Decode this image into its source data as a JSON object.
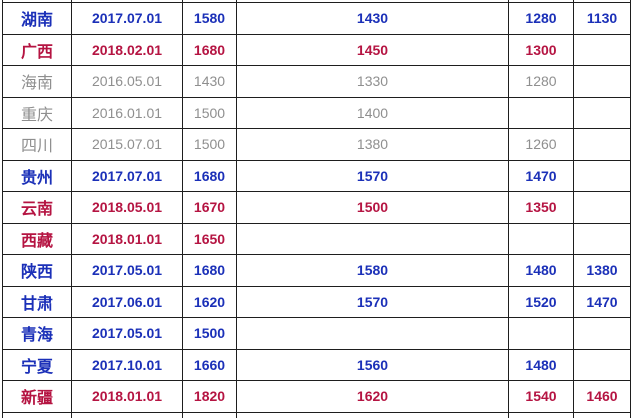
{
  "page": {
    "background": "#ffffff"
  },
  "table": {
    "colors": {
      "blue": "#1b30b8",
      "red": "#b51442",
      "gray": "#8f8f8f",
      "border": "#1e1e1e"
    },
    "rows": [
      {
        "style": "blue",
        "cells": [
          "湖南",
          "2017.07.01",
          "1580",
          "1430",
          "1280",
          "1130"
        ]
      },
      {
        "style": "red",
        "cells": [
          "广西",
          "2018.02.01",
          "1680",
          "1450",
          "1300",
          ""
        ]
      },
      {
        "style": "gray",
        "cells": [
          "海南",
          "2016.05.01",
          "1430",
          "1330",
          "1280",
          ""
        ]
      },
      {
        "style": "gray",
        "cells": [
          "重庆",
          "2016.01.01",
          "1500",
          "1400",
          "",
          ""
        ]
      },
      {
        "style": "gray",
        "cells": [
          "四川",
          "2015.07.01",
          "1500",
          "1380",
          "1260",
          ""
        ]
      },
      {
        "style": "blue",
        "cells": [
          "贵州",
          "2017.07.01",
          "1680",
          "1570",
          "1470",
          ""
        ]
      },
      {
        "style": "red",
        "cells": [
          "云南",
          "2018.05.01",
          "1670",
          "1500",
          "1350",
          ""
        ]
      },
      {
        "style": "red",
        "cells": [
          "西藏",
          "2018.01.01",
          "1650",
          "",
          "",
          ""
        ]
      },
      {
        "style": "blue",
        "cells": [
          "陕西",
          "2017.05.01",
          "1680",
          "1580",
          "1480",
          "1380"
        ]
      },
      {
        "style": "blue",
        "cells": [
          "甘肃",
          "2017.06.01",
          "1620",
          "1570",
          "1520",
          "1470"
        ]
      },
      {
        "style": "blue",
        "cells": [
          "青海",
          "2017.05.01",
          "1500",
          "",
          "",
          ""
        ]
      },
      {
        "style": "blue",
        "cells": [
          "宁夏",
          "2017.10.01",
          "1660",
          "1560",
          "1480",
          ""
        ]
      },
      {
        "style": "red",
        "cells": [
          "新疆",
          "2018.01.01",
          "1820",
          "1620",
          "1540",
          "1460"
        ]
      }
    ]
  }
}
